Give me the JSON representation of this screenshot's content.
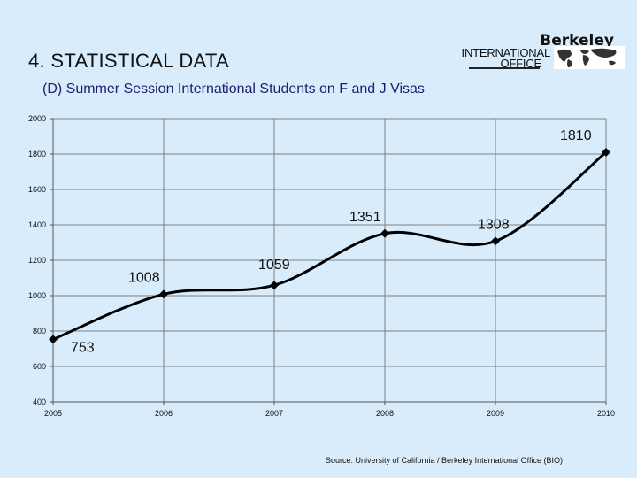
{
  "header": {
    "title": "4. STATISTICAL DATA",
    "logo_berkeley": "Berkeley",
    "logo_international": "INTERNATIONAL",
    "logo_office": "OFFICE"
  },
  "subtitle": "(D) Summer Session International Students on F and J Visas",
  "source": "Source:  University of California / Berkeley International Office (BIO)",
  "chart_data": {
    "type": "line",
    "title": "",
    "xlabel": "",
    "ylabel": "",
    "x": [
      "2005",
      "2006",
      "2007",
      "2008",
      "2009",
      "2010"
    ],
    "series": [
      {
        "values": [
          753,
          1008,
          1059,
          1351,
          1308,
          1810
        ]
      }
    ],
    "data_labels": [
      "753",
      "1008",
      "1059",
      "1351",
      "1308",
      "1810"
    ],
    "ylim": [
      400,
      2000
    ],
    "yticks": [
      "400",
      "600",
      "800",
      "1000",
      "1200",
      "1400",
      "1600",
      "1800",
      "2000"
    ],
    "grid": true,
    "legend": "none",
    "colors": {
      "line": "#000000",
      "grid": "#7f7f7f",
      "background": "#d9ecfb"
    }
  }
}
